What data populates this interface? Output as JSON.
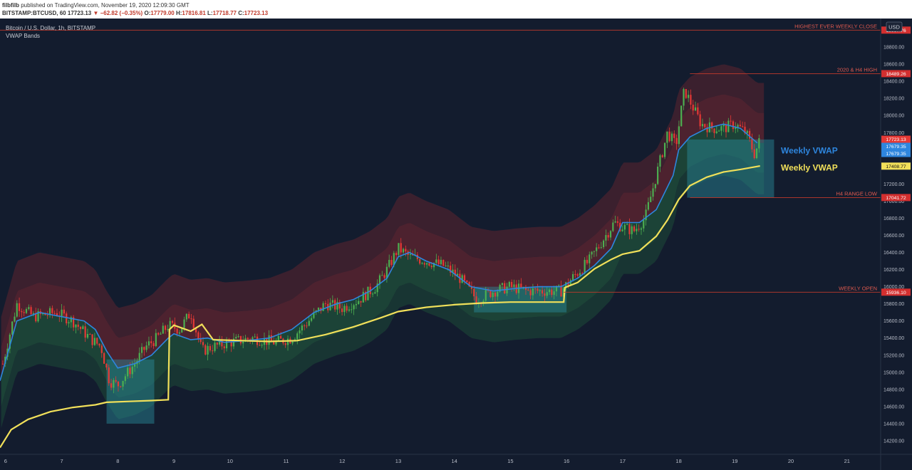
{
  "header": {
    "author": "filbfilb",
    "published": "published on TradingView.com, November 19, 2020 12:09:30 GMT",
    "symbol": "BITSTAMP:BTCUSD, 60",
    "last": "17723.13",
    "change": "▼ −62.82 (−0.35%)",
    "o_label": "O:",
    "o": "17779.00",
    "h_label": "H:",
    "h": "17816.81",
    "l_label": "L:",
    "l": "17718.77",
    "c_label": "C:",
    "c": "17723.13"
  },
  "legend": {
    "title": "Bitcoin / U.S. Dollar, 1h, BITSTAMP",
    "indicator": "VWAP Bands"
  },
  "currency": "USD",
  "colors": {
    "background": "#131c2e",
    "up_candle": "#4caf50",
    "down_candle": "#e53935",
    "weekly_vwap_blue": "#2e86de",
    "weekly_vwap_yellow": "#f1e05a",
    "level_line": "#c0392b",
    "upper_band": "#5c2430",
    "lower_band": "#1e4a38",
    "range_box": "#2a8f9e"
  },
  "chart_data": {
    "type": "candlestick",
    "title": "Bitcoin / U.S. Dollar, 1h, BITSTAMP",
    "x_ticks": [
      "6",
      "7",
      "8",
      "9",
      "10",
      "11",
      "12",
      "13",
      "14",
      "15",
      "16",
      "17",
      "18",
      "19",
      "20",
      "21"
    ],
    "y_ticks": [
      "14200.00",
      "14400.00",
      "14600.00",
      "14800.00",
      "15000.00",
      "15200.00",
      "15400.00",
      "15600.00",
      "15800.00",
      "16000.00",
      "16200.00",
      "16400.00",
      "16600.00",
      "16800.00",
      "17000.00",
      "17200.00",
      "17400.00",
      "17600.00",
      "17800.00",
      "18000.00",
      "18200.00",
      "18400.00",
      "18600.00",
      "18800.00"
    ],
    "ylim": [
      14050,
      19100
    ],
    "xlim": [
      5.9,
      21.6
    ],
    "levels": [
      {
        "label": "HIGHEST EVER WEEKLY CLOSE",
        "value": 18997.76,
        "tag": "18997.76"
      },
      {
        "label": "2020 & H4 HIGH",
        "value": 18489.26,
        "tag": "18489.26"
      },
      {
        "label": "H4 RANGE LOW",
        "value": 17041.72,
        "tag": "17041.72"
      },
      {
        "label": "WEEKLY OPEN",
        "value": 15936.1,
        "tag": "15936.10"
      }
    ],
    "price_tags": [
      {
        "value": 17723.13,
        "tag": "17723.13",
        "color": "#e53935"
      },
      {
        "value": 17679.35,
        "tag": "17679.35",
        "color": "#2e86de"
      },
      {
        "value": 17679.35,
        "tag": "17679.35",
        "color": "#2e86de"
      },
      {
        "value": 17408.77,
        "tag": "17408.77",
        "color": "#f1e05a"
      }
    ],
    "annotations": [
      {
        "text": "Weekly VWAP",
        "color": "#2e86de"
      },
      {
        "text": "Weekly VWAP",
        "color": "#f1e05a"
      }
    ],
    "series": [
      {
        "kind": "weekly_vwap_blue",
        "x": [
          5.9,
          6.2,
          6.6,
          7.0,
          7.4,
          7.6,
          7.8,
          8.0,
          8.3,
          8.6,
          8.9,
          9.0,
          9.3,
          9.6,
          9.9,
          10.3,
          10.7,
          11.1,
          11.5,
          11.9,
          12.2,
          12.5,
          12.8,
          13.0,
          13.2,
          13.5,
          13.9,
          14.3,
          14.7,
          15.1,
          15.5,
          15.9,
          16.2,
          16.5,
          16.8,
          17.0,
          17.3,
          17.6,
          17.9,
          18.0,
          18.2,
          18.5,
          18.8,
          19.1,
          19.4
        ],
        "y": [
          14900,
          15600,
          15700,
          15650,
          15600,
          15500,
          15250,
          15050,
          15100,
          15200,
          15400,
          15450,
          15380,
          15400,
          15350,
          15370,
          15400,
          15500,
          15700,
          15800,
          15850,
          15950,
          16100,
          16350,
          16400,
          16300,
          16200,
          16000,
          15950,
          15980,
          16000,
          16000,
          16100,
          16250,
          16450,
          16750,
          16750,
          16900,
          17300,
          17600,
          17750,
          17850,
          17900,
          17850,
          17680
        ]
      },
      {
        "kind": "weekly_vwap_yellow",
        "x": [
          5.9,
          6.1,
          6.4,
          6.8,
          7.2,
          7.6,
          7.8,
          8.2,
          8.6,
          8.9,
          8.92,
          9.0,
          9.3,
          9.5,
          9.7,
          10.2,
          10.7,
          11.2,
          11.7,
          12.2,
          12.7,
          13.0,
          13.5,
          14.0,
          14.5,
          15.0,
          15.5,
          15.95,
          15.97,
          16.2,
          16.5,
          16.8,
          17.0,
          17.3,
          17.6,
          17.8,
          18.0,
          18.2,
          18.5,
          18.8,
          19.1,
          19.45
        ],
        "y": [
          14120,
          14330,
          14450,
          14540,
          14590,
          14620,
          14650,
          14660,
          14670,
          14680,
          15500,
          15550,
          15480,
          15560,
          15380,
          15370,
          15360,
          15370,
          15440,
          15530,
          15640,
          15710,
          15760,
          15790,
          15810,
          15820,
          15820,
          15820,
          15990,
          16050,
          16210,
          16320,
          16380,
          16420,
          16590,
          16780,
          17020,
          17180,
          17280,
          17340,
          17370,
          17410
        ]
      }
    ],
    "candle_path_x": [
      5.95,
      6.2,
      6.5,
      6.9,
      7.2,
      7.5,
      7.7,
      7.85,
      8.0,
      8.3,
      8.5,
      8.7,
      8.9,
      9.1,
      9.3,
      9.5,
      9.7,
      10.0,
      10.4,
      10.8,
      11.1,
      11.4,
      11.7,
      12.0,
      12.3,
      12.6,
      12.8,
      13.0,
      13.2,
      13.5,
      13.8,
      14.1,
      14.4,
      14.7,
      15.0,
      15.3,
      15.6,
      15.9,
      16.1,
      16.4,
      16.7,
      16.85,
      17.0,
      17.2,
      17.4,
      17.6,
      17.8,
      17.95,
      18.1,
      18.25,
      18.4,
      18.6,
      18.8,
      19.0,
      19.2,
      19.35,
      19.45
    ],
    "candle_path_y": [
      15100,
      15800,
      15650,
      15700,
      15600,
      15400,
      15300,
      14900,
      14850,
      15100,
      15300,
      15400,
      15550,
      15500,
      15700,
      15250,
      15300,
      15350,
      15400,
      15350,
      15400,
      15600,
      15800,
      15750,
      15850,
      16000,
      16200,
      16450,
      16350,
      16300,
      16250,
      16100,
      15850,
      15950,
      16000,
      15950,
      15950,
      15950,
      16100,
      16300,
      16600,
      16750,
      16700,
      16650,
      16800,
      17300,
      17800,
      17650,
      18300,
      18100,
      17900,
      17850,
      17850,
      17900,
      17800,
      17550,
      17720
    ]
  }
}
